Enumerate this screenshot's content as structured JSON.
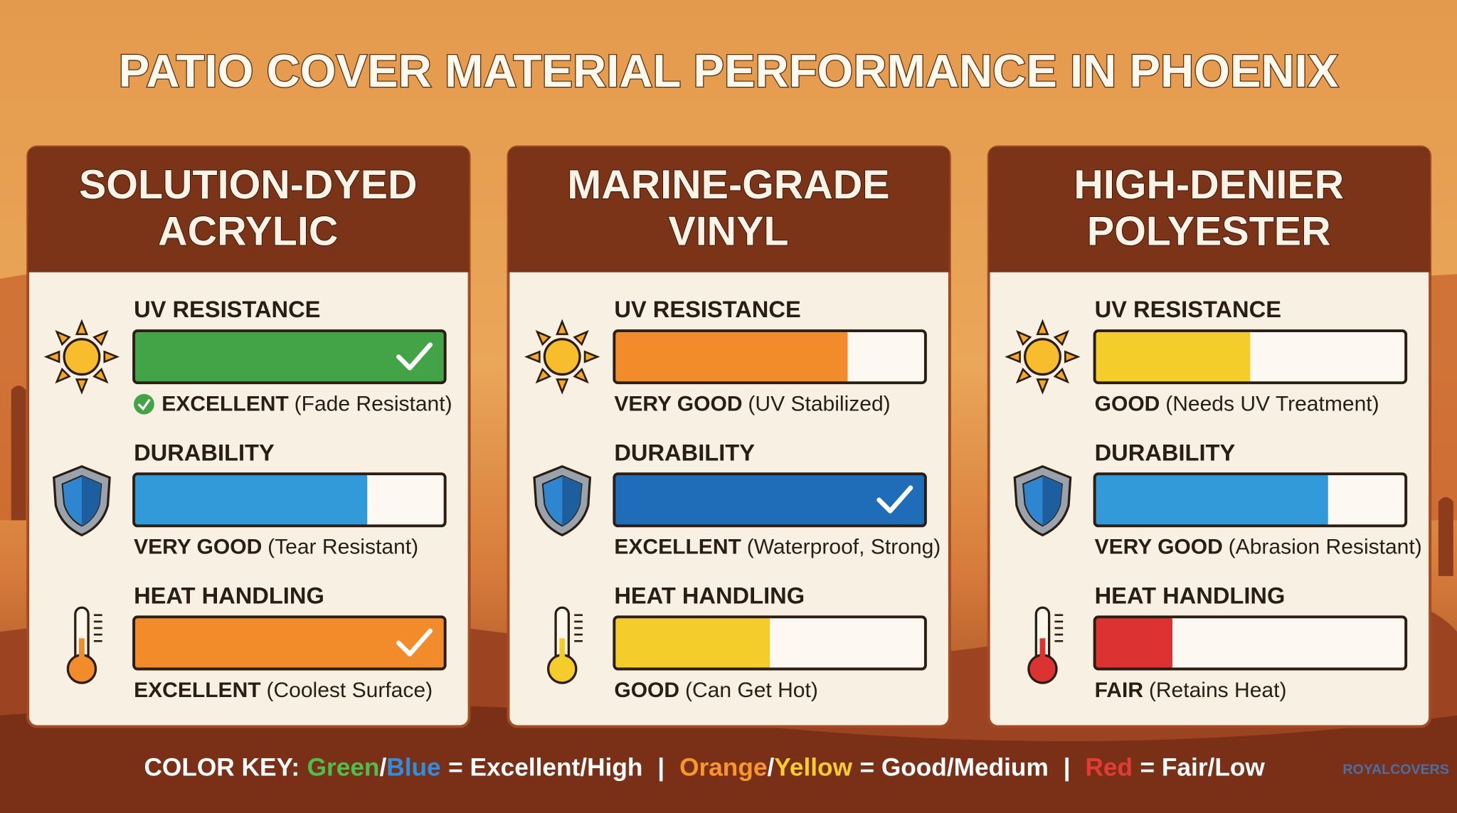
{
  "title": "PATIO COVER MATERIAL PERFORMANCE IN PHOENIX",
  "panels": [
    {
      "name": [
        "SOLUTION-DYED",
        "ACRYLIC"
      ],
      "metrics": [
        {
          "label": "UV RESISTANCE",
          "rating": "EXCELLENT",
          "note": "(Fade Resistant)",
          "fill": 100,
          "color": "#43a447",
          "check": true,
          "badge": true,
          "icon": "sun"
        },
        {
          "label": "DURABILITY",
          "rating": "VERY GOOD",
          "note": "(Tear Resistant)",
          "fill": 75,
          "color": "#329ad8",
          "check": false,
          "badge": false,
          "icon": "shield"
        },
        {
          "label": "HEAT HANDLING",
          "rating": "EXCELLENT",
          "note": "(Coolest Surface)",
          "fill": 100,
          "color": "#f28b2a",
          "check": true,
          "badge": false,
          "icon": "thermometer"
        }
      ]
    },
    {
      "name": [
        "MARINE-GRADE",
        "VINYL"
      ],
      "metrics": [
        {
          "label": "UV RESISTANCE",
          "rating": "VERY GOOD",
          "note": "(UV Stabilized)",
          "fill": 75,
          "color": "#f28b2a",
          "check": false,
          "badge": false,
          "icon": "sun"
        },
        {
          "label": "DURABILITY",
          "rating": "EXCELLENT",
          "note": "(Waterproof, Strong)",
          "fill": 100,
          "color": "#1f6db8",
          "check": true,
          "badge": false,
          "icon": "shield"
        },
        {
          "label": "HEAT HANDLING",
          "rating": "GOOD",
          "note": "(Can Get Hot)",
          "fill": 50,
          "color": "#f4cd2a",
          "check": false,
          "badge": false,
          "icon": "thermometer"
        }
      ]
    },
    {
      "name": [
        "HIGH-DENIER",
        "POLYESTER"
      ],
      "metrics": [
        {
          "label": "UV RESISTANCE",
          "rating": "GOOD",
          "note": "(Needs UV Treatment)",
          "fill": 50,
          "color": "#f4cd2a",
          "check": false,
          "badge": false,
          "icon": "sun"
        },
        {
          "label": "DURABILITY",
          "rating": "VERY GOOD",
          "note": "(Abrasion Resistant)",
          "fill": 75,
          "color": "#329ad8",
          "check": false,
          "badge": false,
          "icon": "shield"
        },
        {
          "label": "HEAT HANDLING",
          "rating": "FAIR",
          "note": "(Retains Heat)",
          "fill": 25,
          "color": "#dd3232",
          "check": false,
          "badge": false,
          "icon": "thermometer"
        }
      ]
    }
  ],
  "color_key": [
    {
      "text": "COLOR KEY:",
      "color": "#ffffff"
    },
    {
      "text": "Green",
      "color": "#4cc04f"
    },
    {
      "text": "/",
      "color": "#ffffff"
    },
    {
      "text": "Blue",
      "color": "#2d8fe0"
    },
    {
      "text": "= Excellent/High",
      "color": "#ffffff"
    },
    {
      "text": "|",
      "color": "#ffffff"
    },
    {
      "text": "Orange",
      "color": "#f7962c"
    },
    {
      "text": "/",
      "color": "#ffffff"
    },
    {
      "text": "Yellow",
      "color": "#f6cd2c"
    },
    {
      "text": "= Good/Medium",
      "color": "#ffffff"
    },
    {
      "text": "|",
      "color": "#ffffff"
    },
    {
      "text": "Red",
      "color": "#e53b35"
    },
    {
      "text": "= Fair/Low",
      "color": "#ffffff"
    }
  ],
  "logo": "ROYALCOVERS"
}
